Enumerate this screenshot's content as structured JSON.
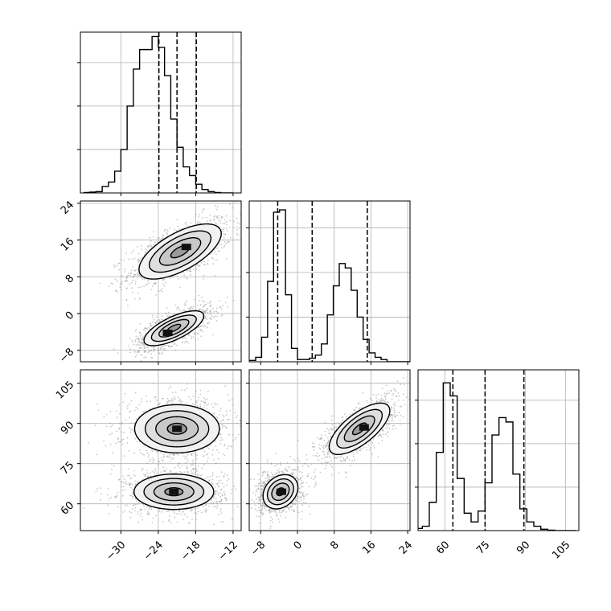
{
  "chart_data": {
    "type": "corner",
    "parameters": [
      "p0",
      "p1",
      "p2"
    ],
    "axes": {
      "p0": {
        "ticks": [
          -30,
          -24,
          -18,
          -12
        ],
        "range": [
          -36.5,
          -10.7
        ]
      },
      "p1": {
        "ticks": [
          -8,
          0,
          8,
          16,
          24
        ],
        "range": [
          -10.5,
          24.5
        ]
      },
      "p2": {
        "ticks": [
          60,
          75,
          90,
          105
        ],
        "range": [
          50,
          110
        ]
      }
    },
    "grid": true,
    "diagonals": [
      {
        "param": "p0",
        "quantiles": [
          -23.9,
          -21.0,
          -17.9
        ],
        "bin_width": 1.0,
        "bins_start": -36,
        "counts": [
          0.1,
          0.2,
          0.3,
          1.5,
          2.5,
          5.0,
          10.0,
          20.0,
          28.5,
          33.0,
          33.0,
          36.0,
          33.5,
          27.0,
          17.0,
          10.5,
          6.0,
          4.0,
          2.0,
          0.8,
          0.3,
          0.1,
          0.0,
          0.0
        ],
        "ymax": 37
      },
      {
        "param": "p1",
        "quantiles": [
          -4.3,
          3.2,
          15.2
        ],
        "bin_width": 1.3,
        "bins_start": -10.4,
        "counts": [
          0.3,
          1.0,
          5.5,
          18.0,
          33.5,
          34.0,
          15.0,
          3.0,
          0.5,
          0.5,
          0.8,
          1.5,
          4.0,
          10.5,
          17.0,
          22.0,
          21.0,
          16.0,
          10.0,
          5.0,
          2.0,
          1.0,
          0.5,
          0.0,
          0.0,
          0.0,
          0.0
        ],
        "ymax": 36
      },
      {
        "param": "p2",
        "quantiles": [
          63.0,
          75.0,
          89.5
        ],
        "bin_width": 2.6,
        "bins_start": 49,
        "counts": [
          0.5,
          1.0,
          6.5,
          18.0,
          34.0,
          31.0,
          12.0,
          4.0,
          2.0,
          4.5,
          11.0,
          22.0,
          26.0,
          25.0,
          13.0,
          5.0,
          2.0,
          1.0,
          0.3,
          0.1,
          0.0,
          0.0,
          0.0
        ],
        "ymax": 37
      }
    ],
    "scatter_panels": [
      {
        "x": "p0",
        "y": "p1",
        "modes": [
          {
            "center": [
              -20.5,
              13.5
            ],
            "sd": [
              3.3,
              3.0
            ],
            "rho": 0.65,
            "peak": [
              -19.5,
              14.5
            ]
          },
          {
            "center": [
              -21.5,
              -3.2
            ],
            "sd": [
              2.4,
              1.9
            ],
            "rho": 0.7,
            "peak": [
              -22.5,
              -4.2
            ]
          }
        ]
      },
      {
        "x": "p0",
        "y": "p2",
        "modes": [
          {
            "center": [
              -21.0,
              88.0
            ],
            "sd": [
              3.4,
              4.5
            ],
            "rho": 0.0,
            "peak": [
              -21.0,
              88.0
            ]
          },
          {
            "center": [
              -21.5,
              64.5
            ],
            "sd": [
              3.2,
              3.3
            ],
            "rho": 0.0,
            "peak": [
              -21.5,
              64.5
            ]
          }
        ]
      },
      {
        "x": "p1",
        "y": "p2",
        "modes": [
          {
            "center": [
              13.5,
              88.0
            ],
            "sd": [
              3.3,
              4.8
            ],
            "rho": 0.7,
            "peak": [
              14.5,
              88.5
            ]
          },
          {
            "center": [
              -3.7,
              64.5
            ],
            "sd": [
              1.9,
              3.2
            ],
            "rho": 0.25,
            "peak": [
              -3.5,
              64.5
            ]
          }
        ]
      }
    ]
  }
}
